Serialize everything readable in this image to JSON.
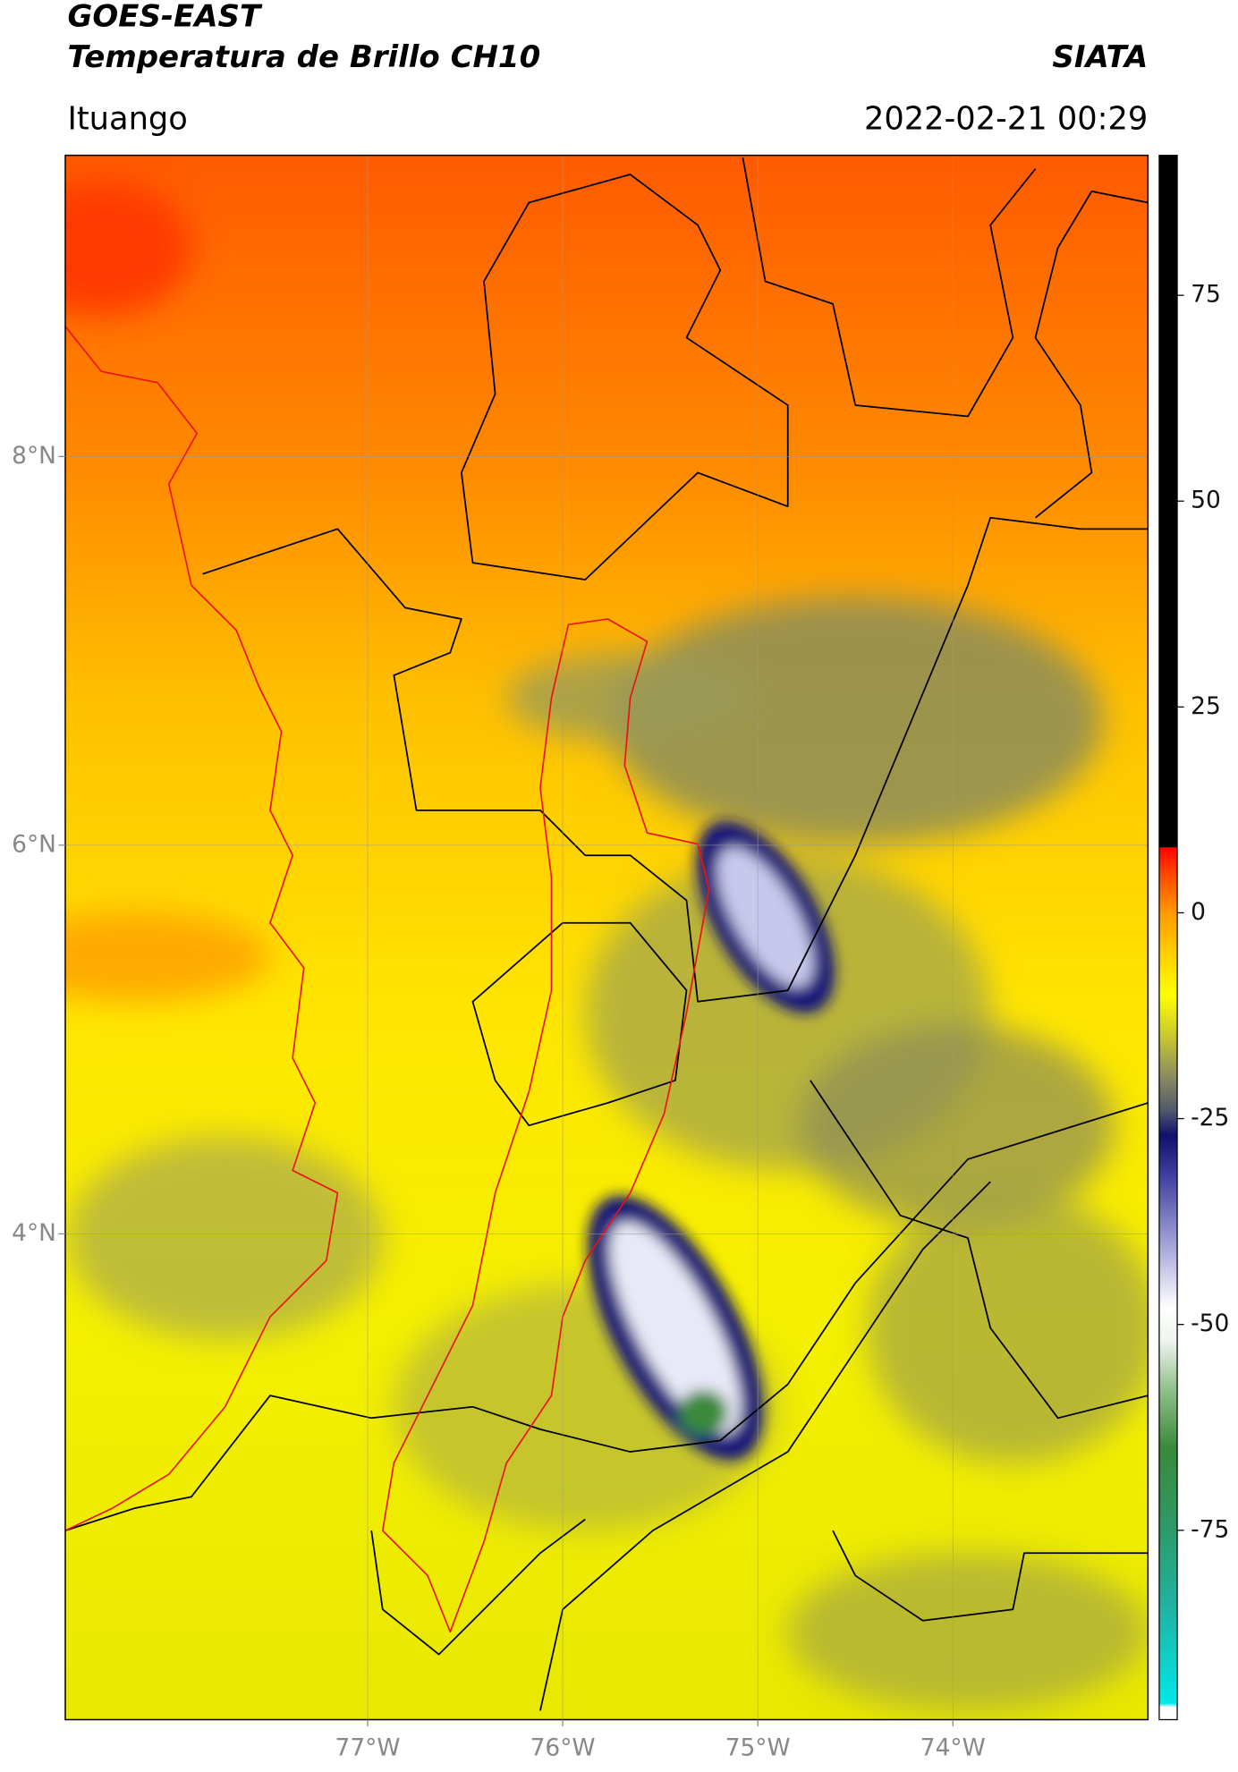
{
  "header": {
    "title": "GOES-EAST",
    "subtitle": "Temperatura de Brillo CH10",
    "source": "SIATA",
    "location": "Ituango",
    "datetime": "2022-02-21 00:29"
  },
  "map": {
    "xlim": [
      -78.55,
      -73.0
    ],
    "ylim": [
      1.5,
      9.55
    ],
    "xticks": [
      {
        "value": -77,
        "label": "77°W"
      },
      {
        "value": -76,
        "label": "76°W"
      },
      {
        "value": -75,
        "label": "75°W"
      },
      {
        "value": -74,
        "label": "74°W"
      }
    ],
    "yticks": [
      {
        "value": 8,
        "label": "8°N"
      },
      {
        "value": 6,
        "label": "6°N"
      },
      {
        "value": 4,
        "label": "4°N"
      }
    ],
    "grid": true
  },
  "colorbar": {
    "lim": [
      -98,
      92
    ],
    "ticks": [
      75,
      50,
      25,
      0,
      -25,
      -50,
      -75
    ],
    "colormap": [
      {
        "value": -98,
        "color": "#ffffff"
      },
      {
        "value": -96.5,
        "color": "#ffffff"
      },
      {
        "value": -96,
        "color": "#00e8e8"
      },
      {
        "value": -85,
        "color": "#1fb5a5"
      },
      {
        "value": -75,
        "color": "#2e9a6a"
      },
      {
        "value": -65,
        "color": "#3a8a3a"
      },
      {
        "value": -58,
        "color": "#8fbf8a"
      },
      {
        "value": -52,
        "color": "#eef4ee"
      },
      {
        "value": -48,
        "color": "#ffffff"
      },
      {
        "value": -40,
        "color": "#a0a0d8"
      },
      {
        "value": -32,
        "color": "#4040a0"
      },
      {
        "value": -27,
        "color": "#10106e"
      },
      {
        "value": -24,
        "color": "#505a6a"
      },
      {
        "value": -20,
        "color": "#8a8a60"
      },
      {
        "value": -15,
        "color": "#c8c830"
      },
      {
        "value": -10,
        "color": "#ffff00"
      },
      {
        "value": -5,
        "color": "#ffd000"
      },
      {
        "value": 0,
        "color": "#ff9a00"
      },
      {
        "value": 5,
        "color": "#ff4000"
      },
      {
        "value": 7.9,
        "color": "#ff0000"
      },
      {
        "value": 8,
        "color": "#000000"
      },
      {
        "value": 92,
        "color": "#000000"
      }
    ]
  }
}
